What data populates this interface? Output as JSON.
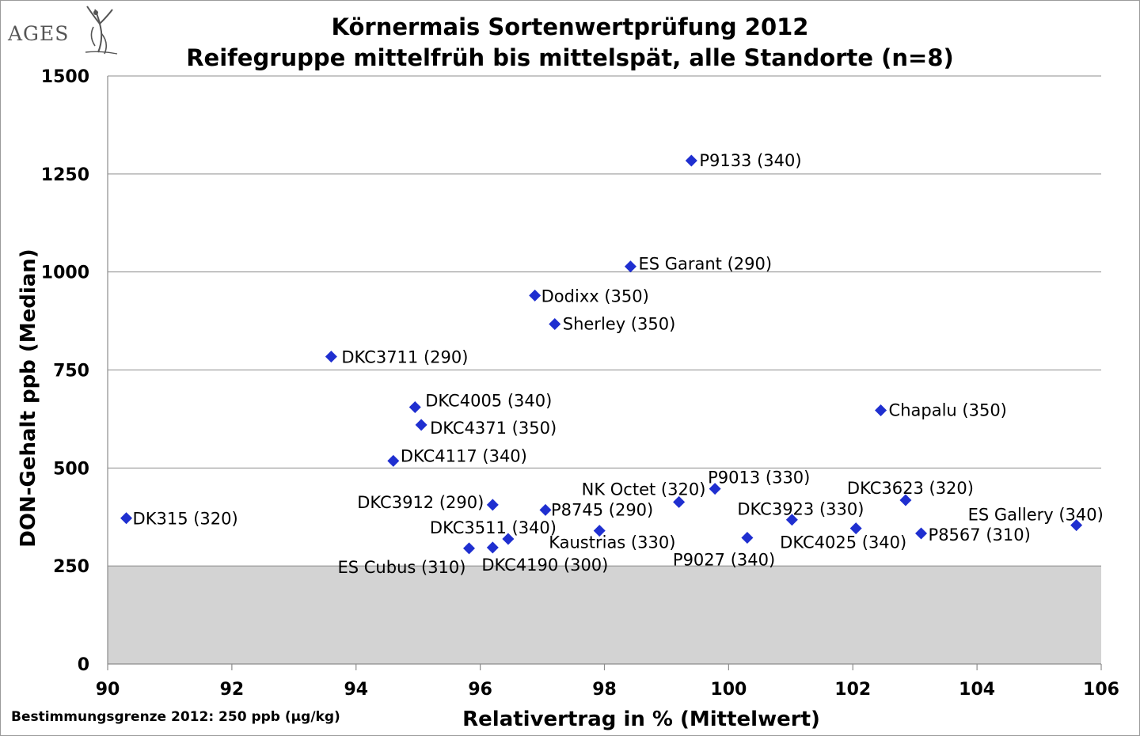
{
  "chart_data": {
    "type": "scatter",
    "title": "Körnermais Sortenwertprüfung 2012",
    "subtitle": "Reifegruppe mittelfrüh bis mittelspät, alle Standorte (n=8)",
    "xlabel": "Relativertrag in % (Mittelwert)",
    "ylabel": "DON-Gehalt ppb (Median)",
    "xlim": [
      90,
      106
    ],
    "ylim": [
      0,
      1500
    ],
    "xticks": [
      90,
      92,
      94,
      96,
      98,
      100,
      102,
      104,
      106
    ],
    "yticks": [
      0,
      250,
      500,
      750,
      1000,
      1250,
      1500
    ],
    "grid": "horizontal",
    "threshold_band": {
      "from": 0,
      "to": 250,
      "color": "#d3d3d3"
    },
    "marker_color": "#1f2fd0",
    "points": [
      {
        "label": "DK315 (320)",
        "x": 90.3,
        "y": 372
      },
      {
        "label": "DKC3711 (290)",
        "x": 93.6,
        "y": 784
      },
      {
        "label": "DKC4005 (340)",
        "x": 94.95,
        "y": 655
      },
      {
        "label": "DKC4371 (350)",
        "x": 95.05,
        "y": 610
      },
      {
        "label": "DKC4117 (340)",
        "x": 94.6,
        "y": 518
      },
      {
        "label": "DKC3912 (290)",
        "x": 96.2,
        "y": 406
      },
      {
        "label": "DKC3511 (340)",
        "x": 96.45,
        "y": 319
      },
      {
        "label": "ES Cubus (310)",
        "x": 95.82,
        "y": 295
      },
      {
        "label": "DKC4190 (300)",
        "x": 96.2,
        "y": 297
      },
      {
        "label": "P8745 (290)",
        "x": 97.05,
        "y": 393
      },
      {
        "label": "Kaustrias (330)",
        "x": 97.92,
        "y": 340
      },
      {
        "label": "Dodixx (350)",
        "x": 96.88,
        "y": 940
      },
      {
        "label": "Sherley (350)",
        "x": 97.2,
        "y": 867
      },
      {
        "label": "ES Garant (290)",
        "x": 98.42,
        "y": 1014
      },
      {
        "label": "P9133 (340)",
        "x": 99.4,
        "y": 1284
      },
      {
        "label": "NK Octet (320)",
        "x": 99.2,
        "y": 413
      },
      {
        "label": "P9013 (330)",
        "x": 99.78,
        "y": 447
      },
      {
        "label": "P9027 (340)",
        "x": 100.3,
        "y": 322
      },
      {
        "label": "DKC3923 (330)",
        "x": 101.02,
        "y": 368
      },
      {
        "label": "DKC4025 (340)",
        "x": 102.05,
        "y": 346
      },
      {
        "label": "DKC3623 (320)",
        "x": 102.85,
        "y": 418
      },
      {
        "label": "P8567 (310)",
        "x": 103.1,
        "y": 333
      },
      {
        "label": "Chapalu (350)",
        "x": 102.45,
        "y": 647
      },
      {
        "label": "ES Gallery (340)",
        "x": 105.6,
        "y": 354
      }
    ]
  },
  "logo": {
    "text": "AGES"
  },
  "footnote": "Bestimmungsgrenze 2012: 250 ppb (µg/kg)"
}
